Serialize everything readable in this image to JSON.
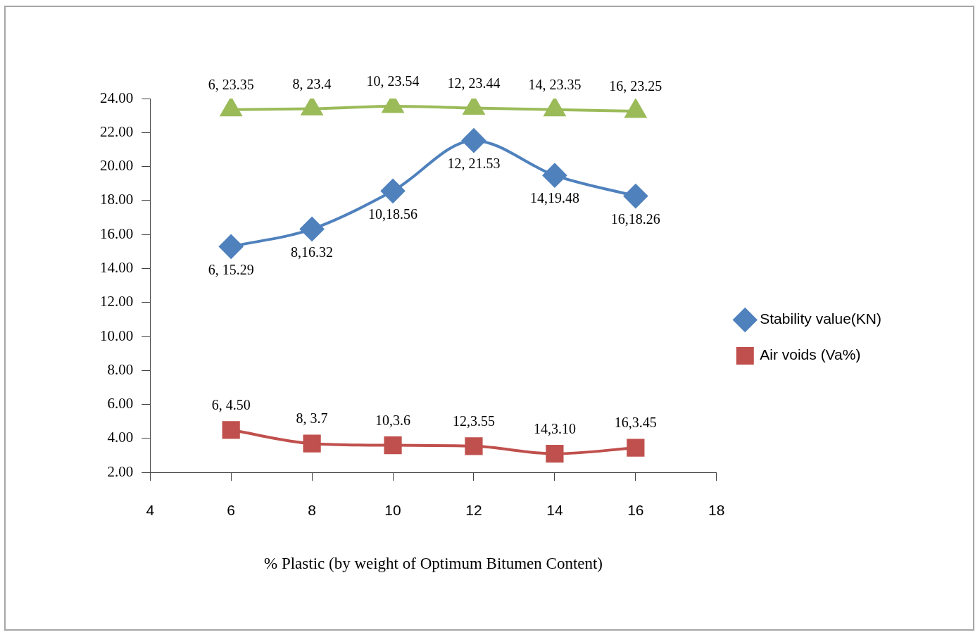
{
  "chart_data": {
    "type": "line",
    "xlabel": "% Plastic (by weight of Optimum Bitumen Content)",
    "x": [
      6,
      8,
      10,
      12,
      14,
      16
    ],
    "xlim": [
      4,
      18
    ],
    "xticks": [
      4,
      6,
      8,
      10,
      12,
      14,
      16,
      18
    ],
    "ylim": [
      2,
      24
    ],
    "yticks": [
      {
        "value": 2,
        "label": "2.00"
      },
      {
        "value": 4,
        "label": "4.00"
      },
      {
        "value": 6,
        "label": "6.00"
      },
      {
        "value": 8,
        "label": "8.00"
      },
      {
        "value": 10,
        "label": "10.00"
      },
      {
        "value": 12,
        "label": "12.00"
      },
      {
        "value": 14,
        "label": "14.00"
      },
      {
        "value": 16,
        "label": "16.00"
      },
      {
        "value": 18,
        "label": "18.00"
      },
      {
        "value": 20,
        "label": "20.00"
      },
      {
        "value": 22,
        "label": "22.00"
      },
      {
        "value": 24,
        "label": "24.00"
      }
    ],
    "grid": false,
    "legend": "right",
    "series": [
      {
        "color": "#9bbb59",
        "marker": "triangle",
        "values": [
          23.35,
          23.4,
          23.54,
          23.44,
          23.35,
          23.25
        ],
        "value_labels": [
          "6, 23.35",
          "8, 23.4",
          "10, 23.54",
          "12, 23.44",
          "14, 23.35",
          "16, 23.25"
        ]
      },
      {
        "name": "Stability value(KN)",
        "color": "#4f81bd",
        "marker": "diamond",
        "values": [
          15.29,
          16.32,
          18.56,
          21.53,
          19.48,
          18.26
        ],
        "value_labels": [
          "6, 15.29",
          "8,16.32",
          "10,18.56",
          "12, 21.53",
          "14,19.48",
          "16,18.26"
        ]
      },
      {
        "name": "Air voids (Va%)",
        "color": "#c0504d",
        "marker": "square",
        "values": [
          4.5,
          3.7,
          3.6,
          3.55,
          3.1,
          3.45
        ],
        "value_labels": [
          "6, 4.50",
          "8, 3.7",
          "10,3.6",
          "12,3.55",
          "14,3.10",
          "16,3.45"
        ]
      }
    ]
  }
}
